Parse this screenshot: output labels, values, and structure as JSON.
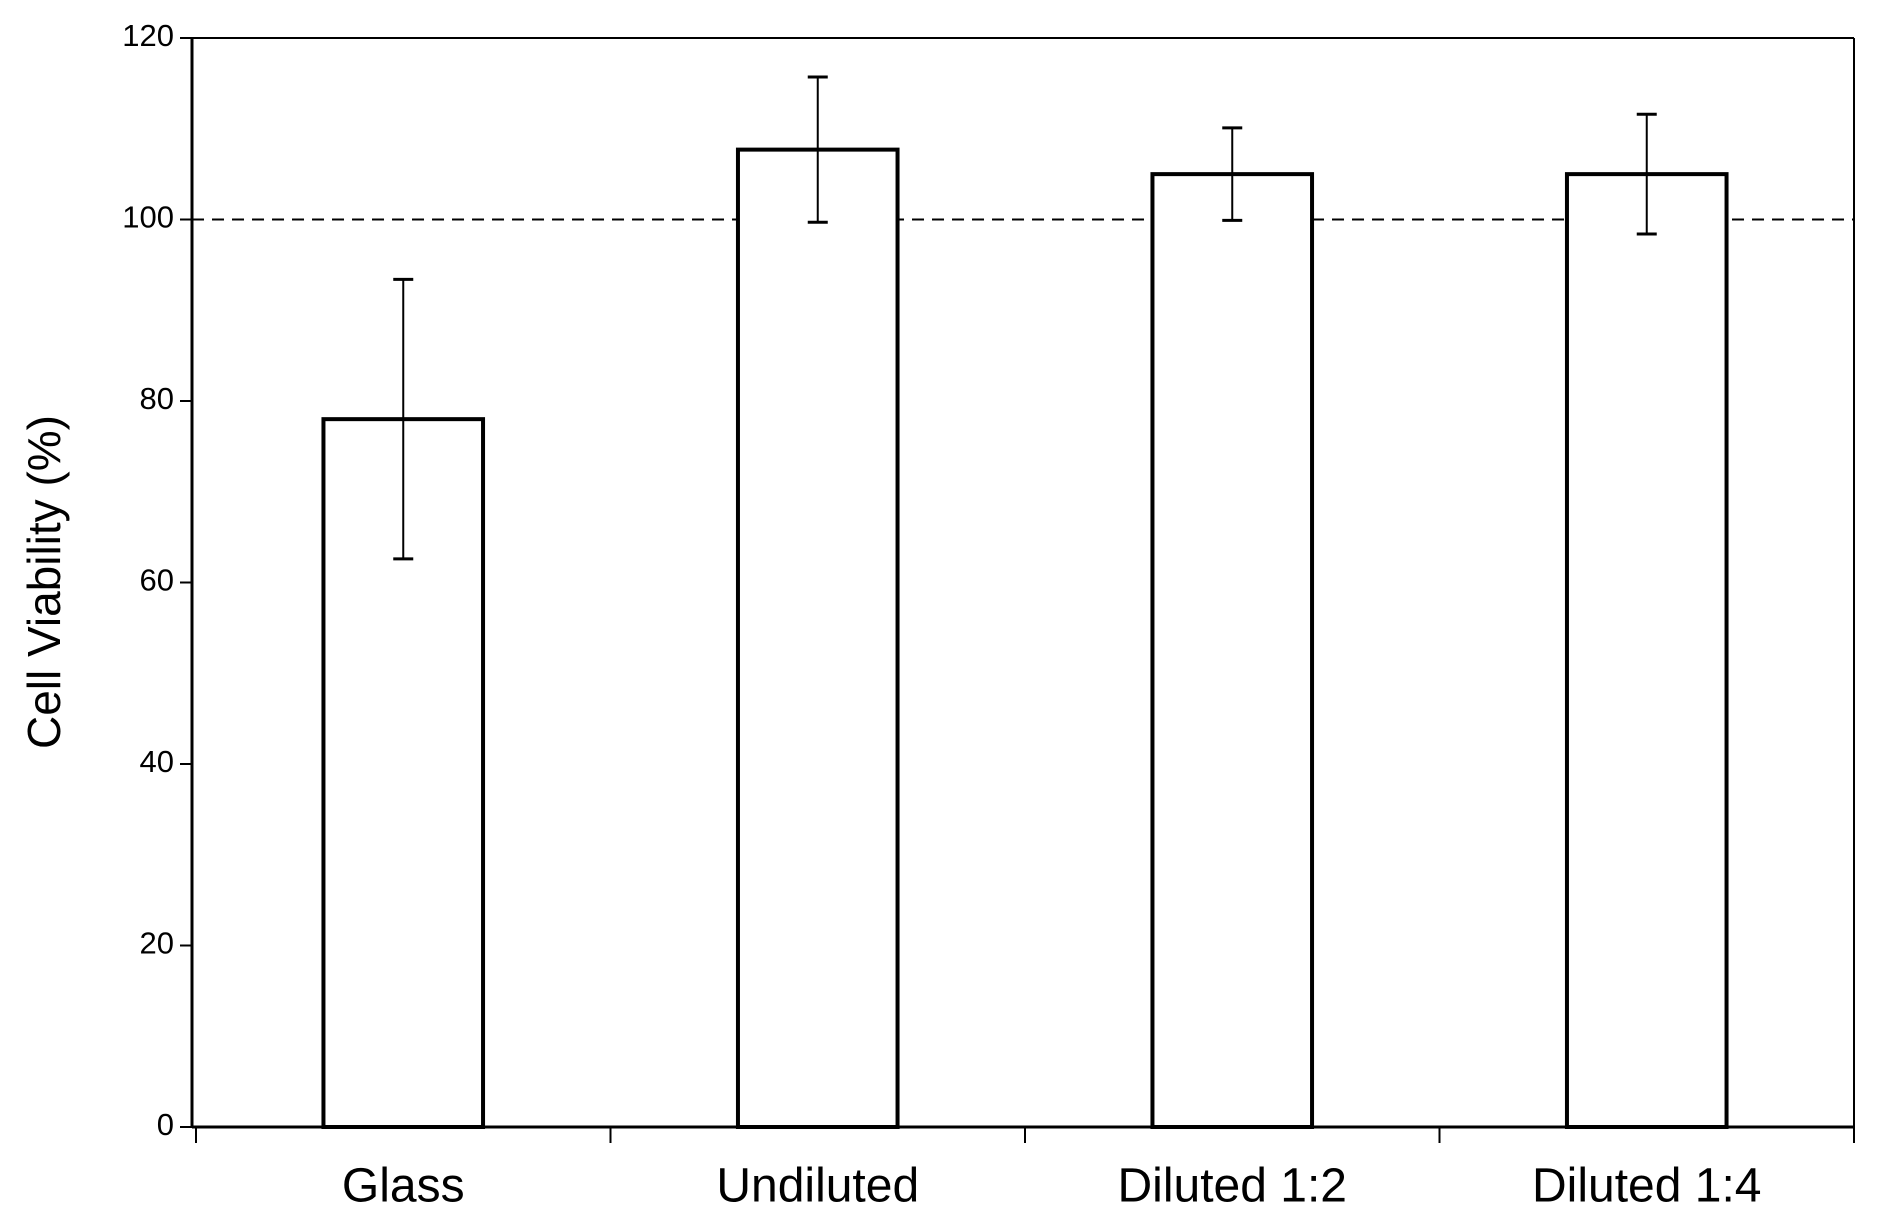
{
  "chart_data": {
    "type": "bar",
    "y_label": "Cell Viability (%)",
    "categories": [
      "Glass",
      "Undiluted",
      "Diluted 1:2",
      "Diluted 1:4"
    ],
    "values": [
      78,
      107.7,
      105,
      105
    ],
    "errors": [
      15.4,
      8,
      5.1,
      6.6
    ],
    "color": "#ffffff",
    "edge_color": "#000000",
    "reference_line": 100,
    "ylim": [
      0,
      120
    ],
    "yticks": [
      0,
      20,
      40,
      60,
      80,
      100,
      120
    ],
    "grid": false
  }
}
